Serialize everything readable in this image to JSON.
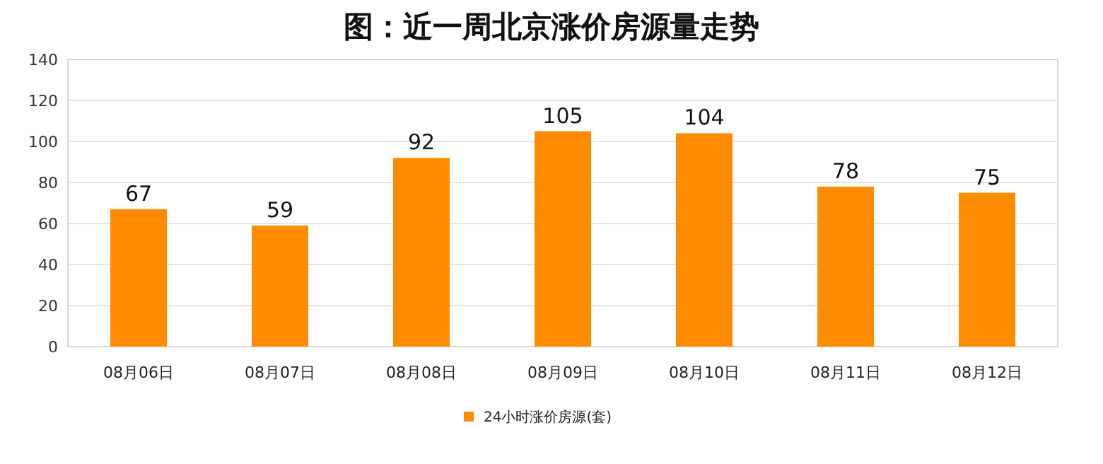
{
  "chart_data": {
    "type": "bar",
    "title": "图：近一周北京涨价房源量走势",
    "categories": [
      "08月06日",
      "08月07日",
      "08月08日",
      "08月09日",
      "08月10日",
      "08月11日",
      "08月12日"
    ],
    "series": [
      {
        "name": "24小时涨价房源(套)",
        "color": "#ff8c00",
        "values": [
          67,
          59,
          92,
          105,
          104,
          78,
          75
        ]
      }
    ],
    "ylim": [
      0,
      140
    ],
    "yticks": [
      0,
      20,
      40,
      60,
      80,
      100,
      120,
      140
    ],
    "grid": "y",
    "data_labels": true,
    "legend": "bottom"
  }
}
